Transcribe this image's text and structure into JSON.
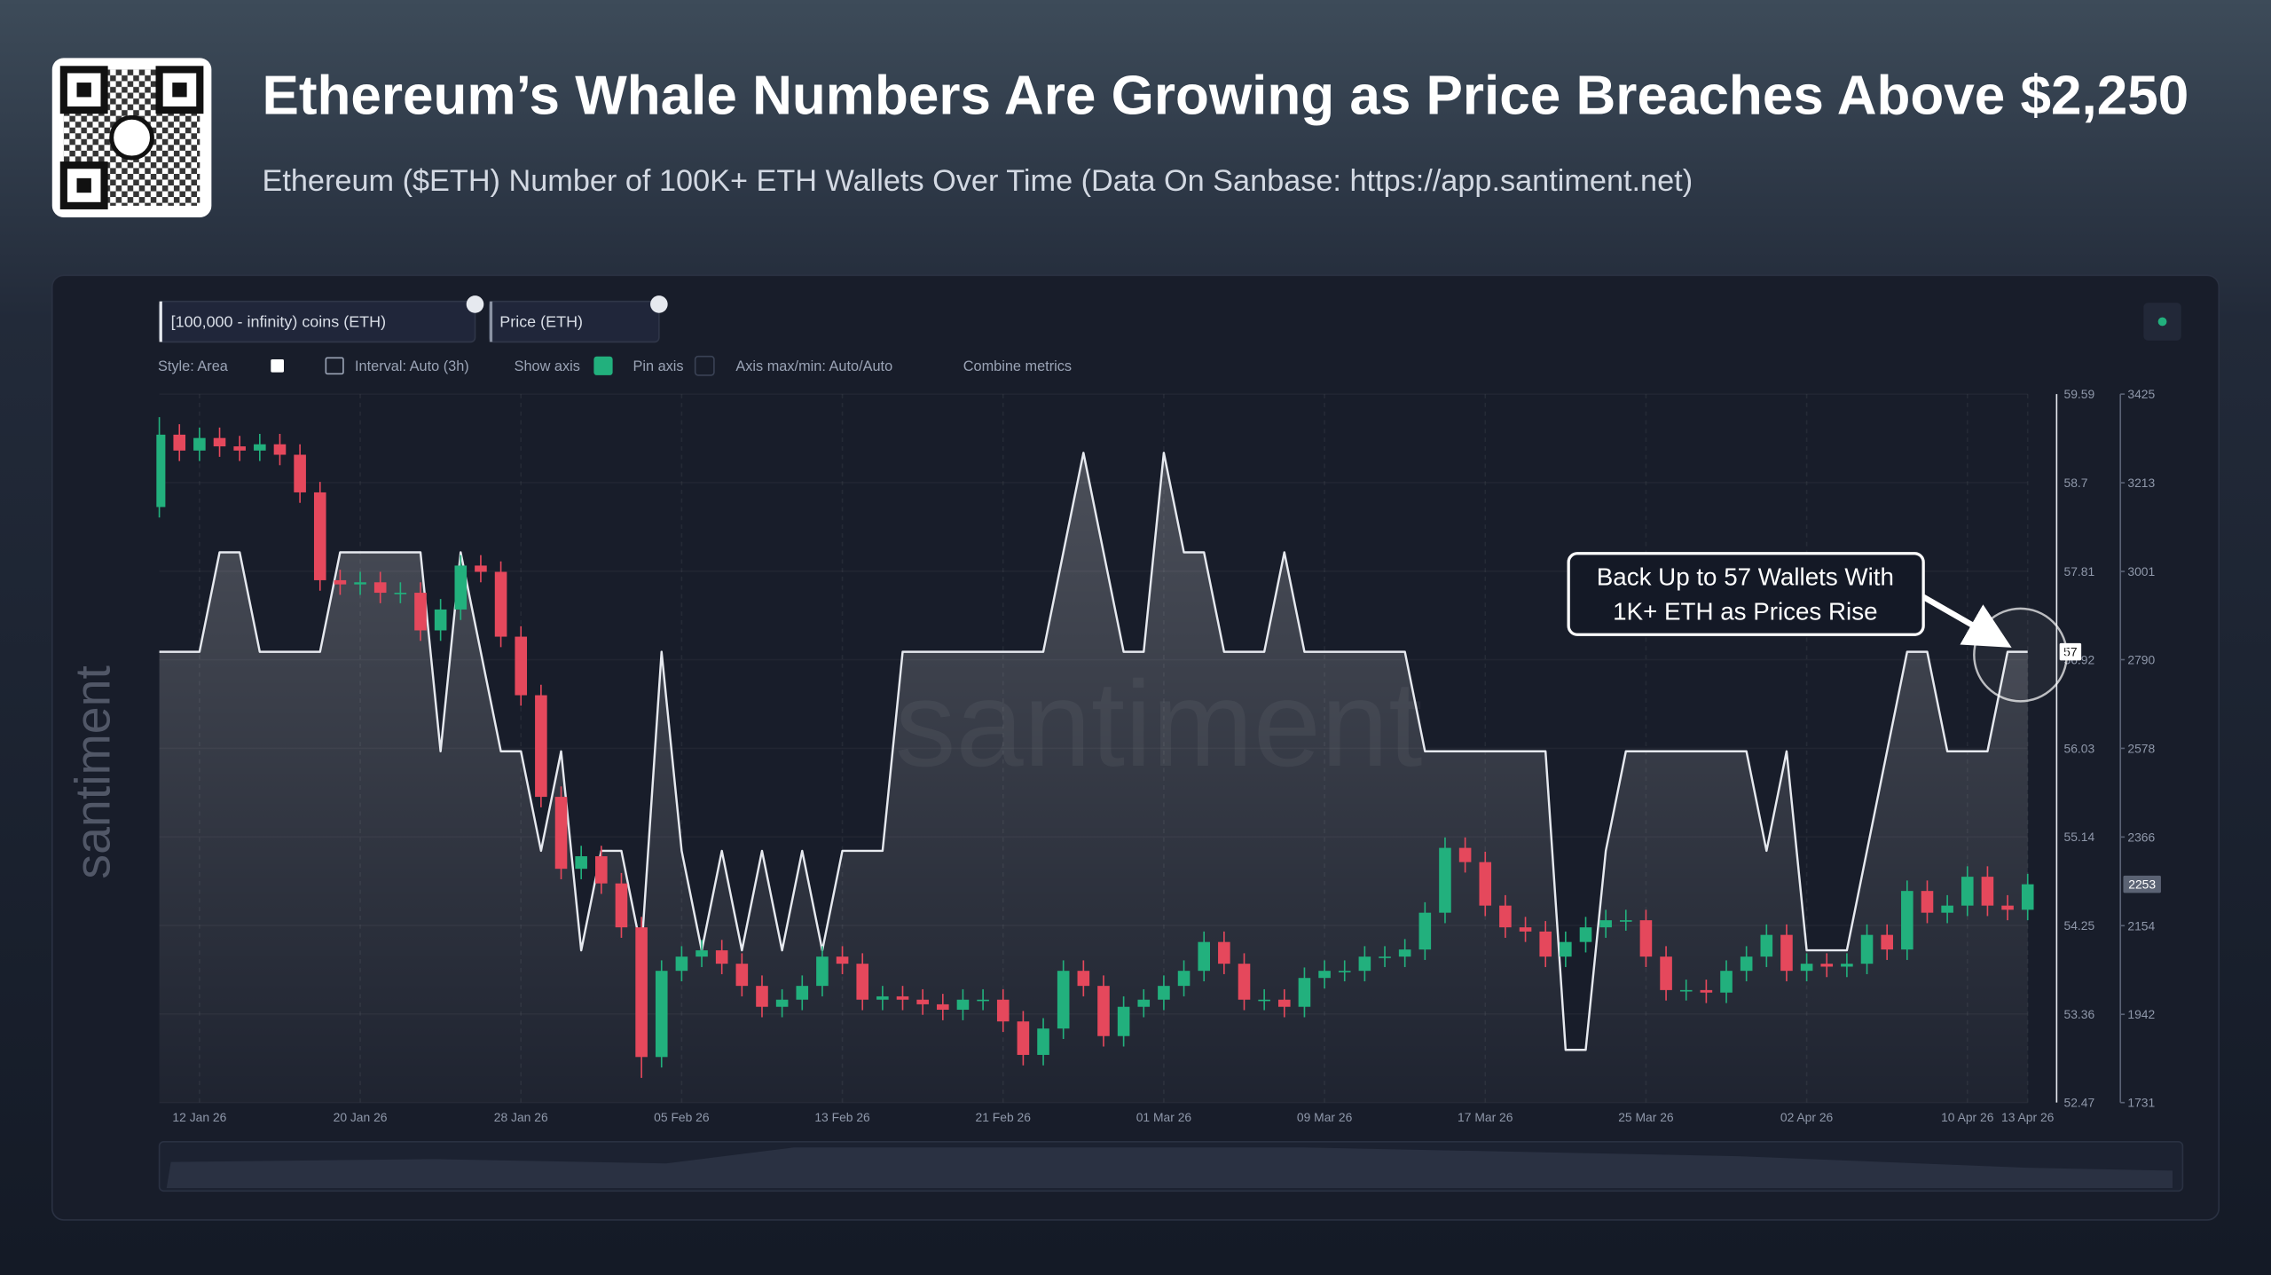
{
  "header": {
    "title": "Ethereum’s Whale Numbers Are Growing as Price Breaches Above $2,250",
    "subtitle": "Ethereum ($ETH) Number of 100K+ ETH Wallets Over Time (Data On Sanbase: https://app.santiment.net)"
  },
  "toolbar": [
    "Style: Area",
    "Interval: Auto (3h)",
    "Show axis",
    "Pin axis",
    "Axis max/min: Auto/Auto",
    "Combine metrics"
  ],
  "watermark": "santiment",
  "chart_data": {
    "type": "area",
    "annotation": [
      "Back Up to 57 Wallets With",
      "1K+ ETH as Prices Rise"
    ],
    "categories": [
      null,
      null,
      "12 Jan 26",
      null,
      null,
      null,
      null,
      null,
      null,
      null,
      "20 Jan 26",
      null,
      null,
      null,
      null,
      null,
      null,
      null,
      "28 Jan 26",
      null,
      null,
      null,
      null,
      null,
      null,
      null,
      "05 Feb 26",
      null,
      null,
      null,
      null,
      null,
      null,
      null,
      "13 Feb 26",
      null,
      null,
      null,
      null,
      null,
      null,
      null,
      "21 Feb 26",
      null,
      null,
      null,
      null,
      null,
      null,
      null,
      "01 Mar 26",
      null,
      null,
      null,
      null,
      null,
      null,
      null,
      "09 Mar 26",
      null,
      null,
      null,
      null,
      null,
      null,
      null,
      "17 Mar 26",
      null,
      null,
      null,
      null,
      null,
      null,
      null,
      "25 Mar 26",
      null,
      null,
      null,
      null,
      null,
      null,
      null,
      "02 Apr 26",
      null,
      null,
      null,
      null,
      null,
      null,
      null,
      "10 Apr 26",
      null,
      null,
      "13 Apr 26"
    ],
    "ylim": [
      52.47,
      59.59
    ],
    "yticks": [
      52.47,
      53.36,
      54.25,
      55.14,
      56.03,
      56.92,
      57.81,
      58.7,
      59.59
    ],
    "y2lim": [
      1731,
      3425
    ],
    "y2ticks": [
      1731,
      1942,
      2154,
      2366,
      2578,
      2790,
      3001,
      3213,
      3425
    ],
    "grid": true,
    "series": [
      {
        "name": "[100,000 - infinity) coins (ETH)",
        "type": "area",
        "color": "#e6e9ef",
        "values": [
          57,
          57,
          57,
          58,
          58,
          57,
          57,
          57,
          57,
          58,
          58,
          58,
          58,
          58,
          56,
          58,
          57,
          56,
          56,
          55,
          56,
          54,
          55,
          55,
          54,
          57,
          55,
          54,
          55,
          54,
          55,
          54,
          55,
          54,
          55,
          55,
          55,
          57,
          57,
          57,
          57,
          57,
          57,
          57,
          57,
          58,
          59,
          58,
          57,
          57,
          59,
          58,
          58,
          57,
          57,
          57,
          58,
          57,
          57,
          57,
          57,
          57,
          57,
          56,
          56,
          56,
          56,
          56,
          56,
          56,
          53,
          53,
          55,
          56,
          56,
          56,
          56,
          56,
          56,
          56,
          55,
          56,
          54,
          54,
          54,
          55,
          56,
          57,
          57,
          56,
          56,
          56,
          57,
          57
        ]
      },
      {
        "name": "Price (ETH)",
        "type": "candlestick",
        "axis": "y2",
        "up_color": "#22b07d",
        "down_color": "#e5485c",
        "open": [
          3155,
          3328,
          3290,
          3320,
          3300,
          3290,
          3305,
          3280,
          3190,
          2980,
          2970,
          2975,
          2950,
          2950,
          2860,
          2910,
          3015,
          3000,
          2845,
          2705,
          2462,
          2290,
          2320,
          2255,
          2150,
          1840,
          2046,
          2080,
          2095,
          2063,
          2010,
          1960,
          1977,
          2010,
          2080,
          2063,
          1977,
          1985,
          1977,
          1966,
          1953,
          1977,
          1977,
          1925,
          1845,
          1908,
          2046,
          2010,
          1890,
          1960,
          1977,
          2010,
          2046,
          2115,
          2063,
          1977,
          1977,
          1960,
          2029,
          2046,
          2046,
          2080,
          2080,
          2097,
          2185,
          2340,
          2306,
          2202,
          2150,
          2140,
          2080,
          2115,
          2150,
          2167,
          2167,
          2080,
          2000,
          2000,
          1994,
          2046,
          2080,
          2132,
          2046,
          2063,
          2056,
          2063,
          2132,
          2097,
          2237,
          2185,
          2202,
          2271,
          2202,
          2192
        ],
        "high": [
          3370,
          3353,
          3345,
          3345,
          3325,
          3330,
          3330,
          3305,
          3215,
          3005,
          3000,
          3000,
          2975,
          2975,
          2935,
          3040,
          3040,
          3025,
          2870,
          2730,
          2487,
          2345,
          2345,
          2280,
          2175,
          2071,
          2105,
          2120,
          2120,
          2088,
          2035,
          2002,
          2035,
          2105,
          2105,
          2088,
          2010,
          2010,
          2002,
          1991,
          2002,
          2002,
          2002,
          1950,
          1933,
          2071,
          2071,
          2035,
          1985,
          2002,
          2035,
          2071,
          2140,
          2140,
          2088,
          2002,
          2002,
          2054,
          2071,
          2071,
          2105,
          2105,
          2122,
          2210,
          2365,
          2365,
          2331,
          2227,
          2175,
          2165,
          2140,
          2175,
          2192,
          2192,
          2192,
          2105,
          2025,
          2025,
          2071,
          2105,
          2157,
          2157,
          2088,
          2088,
          2088,
          2157,
          2157,
          2262,
          2262,
          2227,
          2296,
          2296,
          2227,
          2278
        ],
        "low": [
          3130,
          3265,
          3265,
          3275,
          3265,
          3265,
          3255,
          3165,
          2955,
          2945,
          2945,
          2925,
          2925,
          2835,
          2835,
          2885,
          2975,
          2820,
          2680,
          2437,
          2265,
          2265,
          2230,
          2125,
          1790,
          1815,
          2021,
          2055,
          2038,
          1985,
          1935,
          1935,
          1952,
          1985,
          2038,
          1952,
          1952,
          1952,
          1941,
          1928,
          1928,
          1952,
          1900,
          1820,
          1820,
          1883,
          1985,
          1865,
          1865,
          1935,
          1952,
          1985,
          2021,
          2038,
          1952,
          1952,
          1935,
          1935,
          2004,
          2021,
          2021,
          2055,
          2055,
          2072,
          2160,
          2281,
          2177,
          2125,
          2115,
          2055,
          2055,
          2090,
          2125,
          2142,
          2055,
          1975,
          1975,
          1969,
          1969,
          2021,
          2055,
          2021,
          2021,
          2031,
          2031,
          2038,
          2072,
          2072,
          2160,
          2160,
          2177,
          2177,
          2167,
          2167
        ],
        "close": [
          3328,
          3290,
          3320,
          3300,
          3290,
          3305,
          3280,
          3190,
          2980,
          2970,
          2975,
          2950,
          2950,
          2860,
          2910,
          3015,
          3000,
          2845,
          2705,
          2462,
          2290,
          2320,
          2255,
          2150,
          1840,
          2046,
          2080,
          2095,
          2063,
          2010,
          1960,
          1977,
          2010,
          2080,
          2063,
          1977,
          1985,
          1977,
          1966,
          1953,
          1977,
          1977,
          1925,
          1845,
          1908,
          2046,
          2010,
          1890,
          1960,
          1977,
          2010,
          2046,
          2115,
          2063,
          1977,
          1977,
          1960,
          2029,
          2046,
          2046,
          2080,
          2080,
          2097,
          2185,
          2340,
          2306,
          2202,
          2150,
          2140,
          2080,
          2115,
          2150,
          2167,
          2167,
          2080,
          2000,
          2000,
          1994,
          2046,
          2080,
          2132,
          2046,
          2063,
          2056,
          2063,
          2132,
          2097,
          2237,
          2185,
          2202,
          2271,
          2202,
          2192,
          2253
        ]
      }
    ]
  }
}
